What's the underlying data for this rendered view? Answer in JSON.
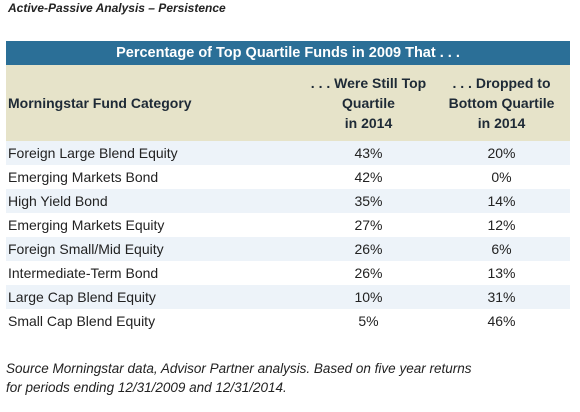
{
  "page_title": "Active-Passive Analysis – Persistence",
  "table": {
    "banner": "Percentage of Top Quartile Funds in 2009 That . . .",
    "headers": {
      "category": "Morningstar Fund Category",
      "col2": [
        ". . . Were Still Top",
        "Quartile",
        "in 2014"
      ],
      "col3": [
        ". . . Dropped to",
        "Bottom Quartile",
        "in 2014"
      ]
    },
    "rows": [
      {
        "category": "Foreign Large Blend Equity",
        "still_top": "43%",
        "dropped_bottom": "20%"
      },
      {
        "category": "Emerging Markets Bond",
        "still_top": "42%",
        "dropped_bottom": "0%"
      },
      {
        "category": "High Yield Bond",
        "still_top": "35%",
        "dropped_bottom": "14%"
      },
      {
        "category": "Emerging Markets Equity",
        "still_top": "27%",
        "dropped_bottom": "12%"
      },
      {
        "category": "Foreign Small/Mid Equity",
        "still_top": "26%",
        "dropped_bottom": "6%"
      },
      {
        "category": "Intermediate-Term Bond",
        "still_top": "26%",
        "dropped_bottom": "13%"
      },
      {
        "category": "Large Cap Blend Equity",
        "still_top": "10%",
        "dropped_bottom": "31%"
      },
      {
        "category": "Small Cap Blend Equity",
        "still_top": "5%",
        "dropped_bottom": "46%"
      }
    ]
  },
  "source_note": {
    "line1": "Source Morningstar data, Advisor Partner analysis. Based on five year returns",
    "line2": "for periods ending 12/31/2009 and 12/31/2014."
  },
  "colors": {
    "banner_bg": "#2b6f97",
    "header_bg": "#e6e3c9",
    "alt_row_bg": "#edf3f9"
  }
}
